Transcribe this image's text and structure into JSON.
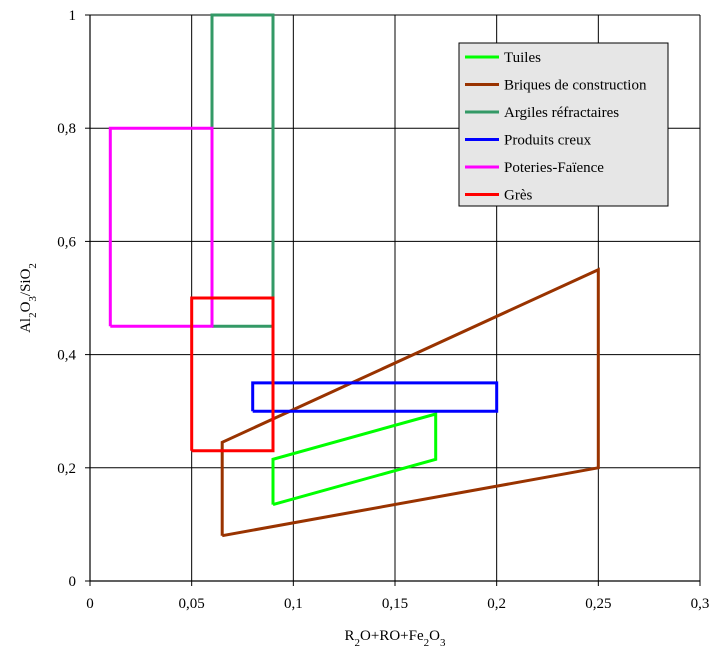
{
  "chart_data": {
    "type": "line",
    "title": "",
    "xlabel_parts": [
      {
        "t": "R"
      },
      {
        "t": "2",
        "sub": true
      },
      {
        "t": "O+RO+Fe"
      },
      {
        "t": "2",
        "sub": true
      },
      {
        "t": "O"
      },
      {
        "t": "3",
        "sub": true
      }
    ],
    "ylabel_parts": [
      {
        "t": "Al"
      },
      {
        "t": "2",
        "sub": true
      },
      {
        "t": "O"
      },
      {
        "t": "3",
        "sub": true
      },
      {
        "t": "/SiO"
      },
      {
        "t": "2",
        "sub": true
      }
    ],
    "xlim": [
      0,
      0.3
    ],
    "ylim": [
      0,
      1
    ],
    "x_ticks": [
      0,
      0.05,
      0.1,
      0.15,
      0.2,
      0.25,
      0.3
    ],
    "x_tick_labels": [
      "0",
      "0,05",
      "0,1",
      "0,15",
      "0,2",
      "0,25",
      "0,3"
    ],
    "y_ticks": [
      0,
      0.2,
      0.4,
      0.6,
      0.8,
      1
    ],
    "y_tick_labels": [
      "0",
      "0,2",
      "0,4",
      "0,6",
      "0,8",
      "1"
    ],
    "grid": true,
    "legend_position": "top-right",
    "series": [
      {
        "name": "Tuiles",
        "color": "#00ff00",
        "x": [
          0.09,
          0.17,
          0.17,
          0.09,
          0.09
        ],
        "y": [
          0.135,
          0.215,
          0.295,
          0.215,
          0.135
        ]
      },
      {
        "name": "Briques de construction",
        "color": "#993300",
        "x": [
          0.065,
          0.25,
          0.25,
          0.065,
          0.065
        ],
        "y": [
          0.08,
          0.2,
          0.55,
          0.245,
          0.08
        ]
      },
      {
        "name": "Argiles réfractaires",
        "color": "#339966",
        "x": [
          0.06,
          0.09,
          0.09,
          0.06,
          0.06
        ],
        "y": [
          0.45,
          0.45,
          1.0,
          1.0,
          0.45
        ]
      },
      {
        "name": "Produits creux",
        "color": "#0000ff",
        "x": [
          0.08,
          0.2,
          0.2,
          0.08,
          0.08
        ],
        "y": [
          0.3,
          0.3,
          0.35,
          0.35,
          0.3
        ]
      },
      {
        "name": "Poteries-Faïence",
        "color": "#ff00ff",
        "x": [
          0.01,
          0.06,
          0.06,
          0.01,
          0.01
        ],
        "y": [
          0.45,
          0.45,
          0.8,
          0.8,
          0.45
        ]
      },
      {
        "name": "Grès",
        "color": "#ff0000",
        "x": [
          0.05,
          0.09,
          0.09,
          0.05,
          0.05
        ],
        "y": [
          0.23,
          0.23,
          0.5,
          0.5,
          0.23
        ]
      }
    ]
  }
}
